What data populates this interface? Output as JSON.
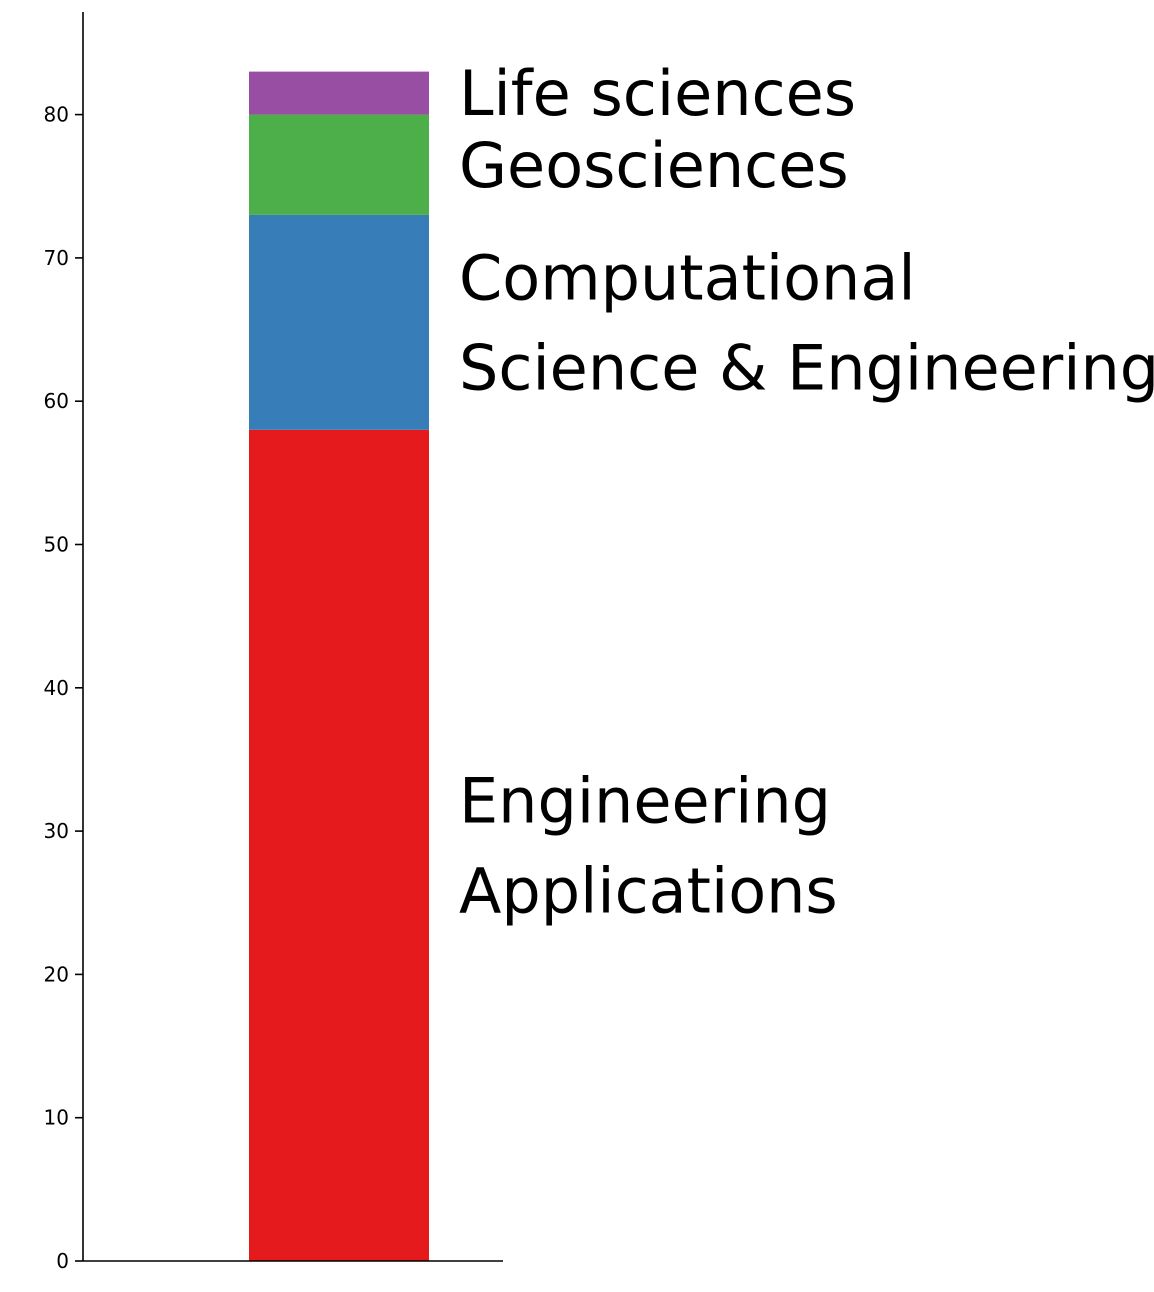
{
  "chart_data": {
    "type": "bar",
    "stacked": true,
    "title": "",
    "xlabel": "",
    "ylabel": "",
    "ylim": [
      0,
      87
    ],
    "yticks": [
      0,
      10,
      20,
      30,
      40,
      50,
      60,
      70,
      80
    ],
    "grid": false,
    "legend": "none",
    "series": [
      {
        "label_lines": [
          "Engineering",
          "Applications"
        ],
        "value": 58,
        "color": "#e41a1c"
      },
      {
        "label_lines": [
          "Computational",
          "Science & Engineering"
        ],
        "value": 15,
        "color": "#377eb8"
      },
      {
        "label_lines": [
          "Geosciences"
        ],
        "value": 7,
        "color": "#4daf4a"
      },
      {
        "label_lines": [
          "Life sciences"
        ],
        "value": 3,
        "color": "#984ea3"
      }
    ]
  }
}
